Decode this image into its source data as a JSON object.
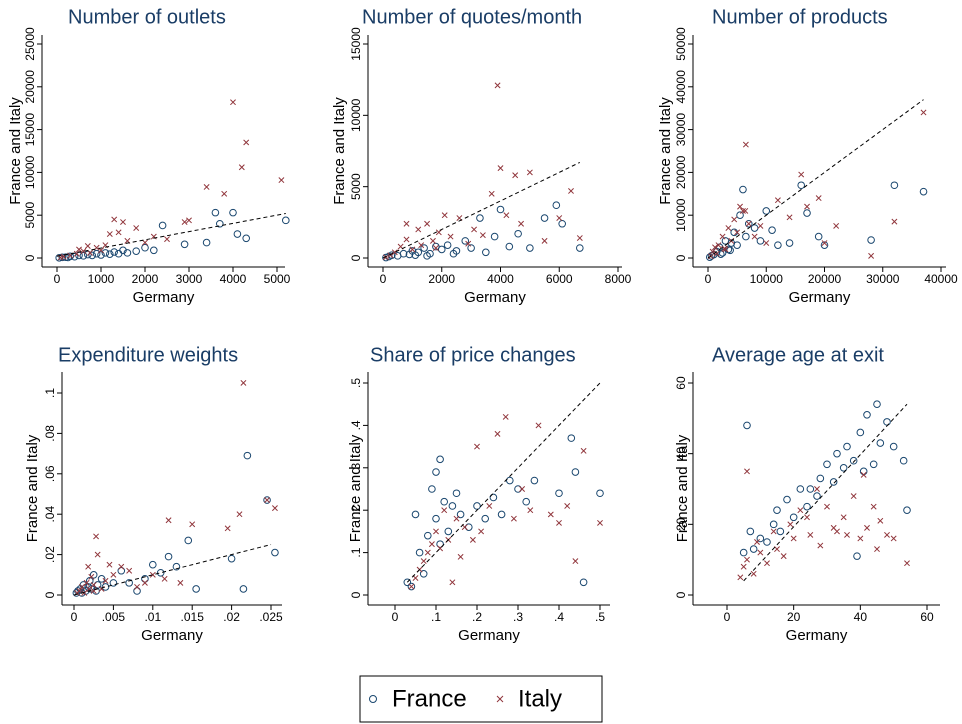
{
  "chart_data": [
    {
      "type": "scatter",
      "title": "Number of outlets",
      "x_label": "Germany",
      "y_label": "France and Italy",
      "xlim": [
        0,
        5000
      ],
      "ylim": [
        0,
        25000
      ],
      "xticks": [
        0,
        1000,
        2000,
        3000,
        4000,
        5000
      ],
      "yticks": [
        0,
        5000,
        10000,
        15000,
        20000,
        25000
      ],
      "fit_line": {
        "x": [
          0,
          5200
        ],
        "y": [
          200,
          5200
        ]
      },
      "series": [
        {
          "name": "France",
          "color": "#1a476f",
          "marker": "circle",
          "x": [
            50,
            120,
            200,
            300,
            400,
            500,
            600,
            700,
            800,
            900,
            1000,
            1100,
            1200,
            1300,
            1400,
            1500,
            1600,
            1800,
            2000,
            2200,
            2400,
            2900,
            3400,
            3600,
            3700,
            4000,
            4100,
            4300,
            5200,
            250
          ],
          "y": [
            20,
            80,
            100,
            200,
            150,
            300,
            250,
            400,
            300,
            500,
            350,
            600,
            450,
            700,
            500,
            900,
            600,
            800,
            1200,
            900,
            3800,
            1600,
            1800,
            5300,
            4000,
            5300,
            2800,
            2300,
            4400,
            60
          ]
        },
        {
          "name": "Italy",
          "color": "#90353b",
          "marker": "x",
          "x": [
            80,
            150,
            300,
            450,
            600,
            750,
            900,
            1000,
            1100,
            1300,
            1400,
            1500,
            1600,
            1800,
            2000,
            2200,
            2500,
            2900,
            3000,
            3400,
            3800,
            4000,
            4200,
            4300,
            5100,
            700,
            1200,
            500
          ],
          "y": [
            50,
            150,
            300,
            500,
            800,
            600,
            1200,
            900,
            1500,
            4500,
            3000,
            4200,
            2000,
            3500,
            1800,
            2500,
            2200,
            4200,
            4400,
            8300,
            7500,
            18200,
            10600,
            13500,
            9100,
            1400,
            2800,
            1000
          ]
        }
      ]
    },
    {
      "type": "scatter",
      "title": "Number of quotes/month",
      "x_label": "Germany",
      "y_label": "France and Italy",
      "xlim": [
        0,
        8000
      ],
      "ylim": [
        0,
        15000
      ],
      "xticks": [
        0,
        2000,
        4000,
        6000,
        8000
      ],
      "yticks": [
        0,
        5000,
        10000,
        15000
      ],
      "fit_line": {
        "x": [
          0,
          6700
        ],
        "y": [
          0,
          6700
        ]
      },
      "series": [
        {
          "name": "France",
          "color": "#1a476f",
          "marker": "circle",
          "x": [
            100,
            200,
            300,
            500,
            700,
            900,
            1000,
            1200,
            1400,
            1600,
            1800,
            2000,
            2200,
            2500,
            2800,
            3000,
            3300,
            3500,
            3800,
            4000,
            4300,
            4600,
            5000,
            5500,
            5900,
            6100,
            6700,
            1100,
            1500,
            2400
          ],
          "y": [
            30,
            100,
            200,
            150,
            300,
            250,
            500,
            400,
            700,
            300,
            800,
            600,
            900,
            500,
            1200,
            700,
            2800,
            400,
            1500,
            3400,
            800,
            1700,
            700,
            2800,
            3700,
            2400,
            700,
            200,
            150,
            300
          ]
        },
        {
          "name": "Italy",
          "color": "#90353b",
          "marker": "x",
          "x": [
            100,
            250,
            400,
            600,
            800,
            1000,
            1200,
            1300,
            1500,
            1700,
            1900,
            2100,
            2300,
            2600,
            2900,
            3100,
            3400,
            3700,
            3900,
            4000,
            4200,
            4500,
            4700,
            5000,
            5500,
            6000,
            6400,
            6700,
            800,
            1800
          ],
          "y": [
            50,
            200,
            400,
            800,
            1300,
            600,
            2000,
            900,
            2400,
            1200,
            1800,
            3000,
            1500,
            2800,
            1000,
            2000,
            1600,
            4500,
            12100,
            6300,
            3000,
            5800,
            2400,
            6000,
            1200,
            2800,
            4700,
            1400,
            2400,
            700
          ]
        }
      ]
    },
    {
      "type": "scatter",
      "title": "Number of products",
      "x_label": "Germany",
      "y_label": "France and Italy",
      "xlim": [
        0,
        40000
      ],
      "ylim": [
        0,
        50000
      ],
      "xticks": [
        0,
        10000,
        20000,
        30000,
        40000
      ],
      "yticks": [
        0,
        10000,
        20000,
        30000,
        40000,
        50000
      ],
      "fit_line": {
        "x": [
          0,
          37000
        ],
        "y": [
          0,
          37000
        ]
      },
      "series": [
        {
          "name": "France",
          "color": "#1a476f",
          "marker": "circle",
          "x": [
            300,
            600,
            1000,
            1500,
            2000,
            2500,
            3000,
            3500,
            4000,
            4500,
            5000,
            5500,
            6000,
            6500,
            7000,
            8000,
            9000,
            10000,
            11000,
            12000,
            14000,
            16000,
            17000,
            19000,
            20000,
            28000,
            32000,
            37000,
            2200,
            3800
          ],
          "y": [
            200,
            500,
            800,
            1500,
            2500,
            1200,
            4000,
            2000,
            3500,
            6000,
            3000,
            10000,
            16000,
            5000,
            8000,
            7000,
            4000,
            11000,
            6500,
            3000,
            3500,
            17000,
            10500,
            5000,
            3000,
            4200,
            17000,
            15500,
            900,
            1800
          ]
        },
        {
          "name": "Italy",
          "color": "#90353b",
          "marker": "x",
          "x": [
            500,
            800,
            1200,
            1800,
            2500,
            3000,
            3500,
            4000,
            4500,
            5000,
            5500,
            6000,
            6500,
            7000,
            8000,
            9000,
            10000,
            12000,
            14000,
            16000,
            17000,
            19000,
            20000,
            22000,
            28000,
            32000,
            37000,
            1500,
            2800,
            6400
          ],
          "y": [
            400,
            1500,
            2500,
            3000,
            5000,
            2000,
            7000,
            4000,
            9000,
            6000,
            12000,
            11000,
            26500,
            8000,
            5000,
            7500,
            3500,
            13500,
            9500,
            19500,
            12000,
            14000,
            3500,
            7500,
            500,
            8500,
            34000,
            1000,
            2200,
            11000
          ]
        }
      ]
    },
    {
      "type": "scatter",
      "title": "Expenditure weights",
      "x_label": "Germany",
      "y_label": "France and Italy",
      "xlim": [
        0,
        0.025
      ],
      "ylim": [
        0,
        0.1
      ],
      "xticks": [
        0,
        {
          "value": 0.005,
          "label": ".005"
        },
        {
          "value": 0.01,
          "label": ".01"
        },
        {
          "value": 0.015,
          "label": ".015"
        },
        {
          "value": 0.02,
          "label": ".02"
        },
        {
          "value": 0.025,
          "label": ".025"
        }
      ],
      "yticks": [
        0,
        {
          "value": 0.02,
          "label": ".02"
        },
        {
          "value": 0.04,
          "label": ".04"
        },
        {
          "value": 0.06,
          "label": ".06"
        },
        {
          "value": 0.08,
          "label": ".08"
        },
        {
          "value": 0.1,
          "label": ".1"
        }
      ],
      "fit_line": {
        "x": [
          0,
          0.025
        ],
        "y": [
          0,
          0.025
        ]
      },
      "series": [
        {
          "name": "France",
          "color": "#1a476f",
          "marker": "circle",
          "x": [
            0.0003,
            0.0005,
            0.0008,
            0.001,
            0.0012,
            0.0015,
            0.0018,
            0.002,
            0.0022,
            0.0025,
            0.003,
            0.0035,
            0.004,
            0.005,
            0.006,
            0.007,
            0.008,
            0.009,
            0.01,
            0.011,
            0.012,
            0.013,
            0.0145,
            0.0155,
            0.02,
            0.0215,
            0.022,
            0.0245,
            0.0255,
            0.0028
          ],
          "y": [
            0.001,
            0.002,
            0.003,
            0.001,
            0.005,
            0.002,
            0.004,
            0.007,
            0.003,
            0.01,
            0.005,
            0.008,
            0.004,
            0.006,
            0.012,
            0.006,
            0.002,
            0.008,
            0.015,
            0.011,
            0.019,
            0.014,
            0.027,
            0.003,
            0.018,
            0.003,
            0.069,
            0.047,
            0.021,
            0.002
          ]
        },
        {
          "name": "Italy",
          "color": "#90353b",
          "marker": "x",
          "x": [
            0.0004,
            0.0007,
            0.001,
            0.0013,
            0.0016,
            0.0019,
            0.0022,
            0.0025,
            0.0028,
            0.003,
            0.0035,
            0.004,
            0.0045,
            0.005,
            0.006,
            0.007,
            0.008,
            0.009,
            0.01,
            0.0115,
            0.012,
            0.0135,
            0.015,
            0.0195,
            0.021,
            0.0215,
            0.0245,
            0.0255,
            0.0025,
            0.0018
          ],
          "y": [
            0.001,
            0.002,
            0.004,
            0.001,
            0.006,
            0.003,
            0.009,
            0.005,
            0.029,
            0.02,
            0.003,
            0.007,
            0.015,
            0.01,
            0.014,
            0.012,
            0.004,
            0.006,
            0.01,
            0.008,
            0.037,
            0.006,
            0.035,
            0.033,
            0.04,
            0.105,
            0.047,
            0.043,
            0.002,
            0.014
          ]
        }
      ]
    },
    {
      "type": "scatter",
      "title": "Share of price changes",
      "x_label": "Germany",
      "y_label": "France and Italy",
      "xlim": [
        0,
        0.5
      ],
      "ylim": [
        0,
        0.5
      ],
      "xticks": [
        0,
        {
          "value": 0.1,
          "label": ".1"
        },
        {
          "value": 0.2,
          "label": ".2"
        },
        {
          "value": 0.3,
          "label": ".3"
        },
        {
          "value": 0.4,
          "label": ".4"
        },
        {
          "value": 0.5,
          "label": ".5"
        }
      ],
      "yticks": [
        0,
        {
          "value": 0.1,
          "label": ".1"
        },
        {
          "value": 0.2,
          "label": ".2"
        },
        {
          "value": 0.3,
          "label": ".3"
        },
        {
          "value": 0.4,
          "label": ".4"
        },
        {
          "value": 0.5,
          "label": ".5"
        }
      ],
      "fit_line": {
        "x": [
          0.03,
          0.5
        ],
        "y": [
          0.03,
          0.5
        ]
      },
      "series": [
        {
          "name": "France",
          "color": "#1a476f",
          "marker": "circle",
          "x": [
            0.03,
            0.04,
            0.05,
            0.06,
            0.07,
            0.08,
            0.09,
            0.1,
            0.1,
            0.11,
            0.12,
            0.13,
            0.14,
            0.15,
            0.16,
            0.18,
            0.2,
            0.22,
            0.24,
            0.26,
            0.28,
            0.3,
            0.32,
            0.34,
            0.4,
            0.43,
            0.44,
            0.46,
            0.5,
            0.11
          ],
          "y": [
            0.03,
            0.02,
            0.19,
            0.1,
            0.05,
            0.14,
            0.25,
            0.29,
            0.18,
            0.32,
            0.22,
            0.15,
            0.21,
            0.24,
            0.19,
            0.16,
            0.21,
            0.18,
            0.23,
            0.19,
            0.27,
            0.25,
            0.22,
            0.27,
            0.24,
            0.37,
            0.29,
            0.03,
            0.24,
            0.12
          ]
        },
        {
          "name": "Italy",
          "color": "#90353b",
          "marker": "x",
          "x": [
            0.04,
            0.05,
            0.06,
            0.07,
            0.08,
            0.09,
            0.1,
            0.11,
            0.12,
            0.13,
            0.14,
            0.15,
            0.16,
            0.17,
            0.19,
            0.2,
            0.21,
            0.23,
            0.25,
            0.27,
            0.29,
            0.31,
            0.33,
            0.35,
            0.38,
            0.4,
            0.42,
            0.44,
            0.46,
            0.5
          ],
          "y": [
            0.02,
            0.04,
            0.06,
            0.08,
            0.1,
            0.12,
            0.15,
            0.11,
            0.2,
            0.13,
            0.03,
            0.18,
            0.09,
            0.16,
            0.13,
            0.35,
            0.15,
            0.21,
            0.38,
            0.42,
            0.18,
            0.25,
            0.2,
            0.4,
            0.19,
            0.17,
            0.21,
            0.08,
            0.34,
            0.17
          ]
        }
      ]
    },
    {
      "type": "scatter",
      "title": "Average age at exit",
      "x_label": "Germany",
      "y_label": "France and Italy",
      "xlim": [
        0,
        60
      ],
      "ylim": [
        0,
        60
      ],
      "xticks": [
        0,
        20,
        40,
        60
      ],
      "yticks": [
        0,
        20,
        40,
        60
      ],
      "fit_line": {
        "x": [
          5,
          54
        ],
        "y": [
          4,
          54
        ]
      },
      "series": [
        {
          "name": "France",
          "color": "#1a476f",
          "marker": "circle",
          "x": [
            5,
            6,
            7,
            8,
            10,
            12,
            14,
            15,
            16,
            18,
            20,
            22,
            24,
            25,
            27,
            28,
            30,
            32,
            33,
            35,
            36,
            38,
            39,
            40,
            41,
            42,
            44,
            45,
            46,
            48,
            50,
            53,
            54
          ],
          "y": [
            12,
            48,
            18,
            13,
            16,
            15,
            20,
            24,
            18,
            27,
            22,
            30,
            25,
            30,
            28,
            33,
            37,
            32,
            40,
            36,
            42,
            38,
            11,
            46,
            35,
            51,
            37,
            54,
            43,
            49,
            42,
            38,
            24
          ]
        },
        {
          "name": "Italy",
          "color": "#90353b",
          "marker": "x",
          "x": [
            4,
            5,
            6,
            8,
            9,
            10,
            12,
            14,
            15,
            17,
            19,
            20,
            22,
            24,
            25,
            27,
            28,
            30,
            32,
            33,
            35,
            36,
            38,
            40,
            41,
            42,
            44,
            45,
            46,
            48,
            50,
            54,
            6
          ],
          "y": [
            5,
            8,
            10,
            6,
            15,
            12,
            9,
            18,
            13,
            11,
            20,
            16,
            24,
            22,
            17,
            30,
            14,
            25,
            19,
            18,
            22,
            17,
            28,
            16,
            34,
            19,
            25,
            13,
            21,
            17,
            16,
            9,
            35
          ]
        }
      ]
    }
  ]
}
